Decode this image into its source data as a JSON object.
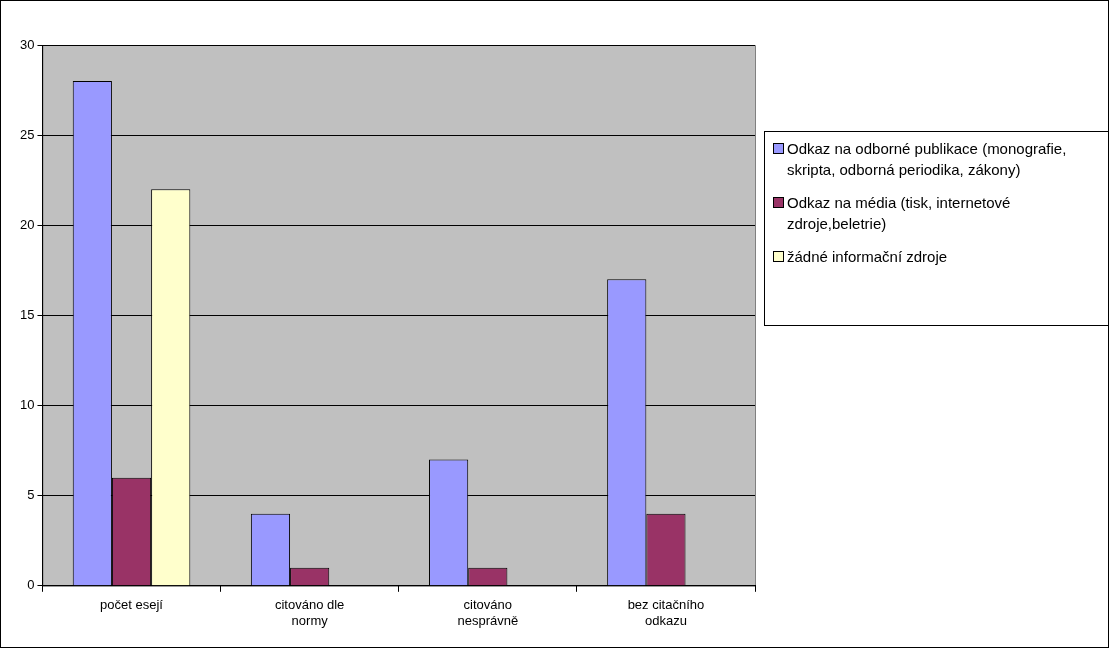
{
  "chart_data": {
    "type": "bar",
    "categories": [
      "počet esejí",
      "citováno dle normy",
      "citováno nesprávně",
      "bez citačního odkazu"
    ],
    "series": [
      {
        "name": "Odkaz na odborné publikace (monografie, skripta, odborná periodika, zákony)",
        "color": "#9999ff",
        "values": [
          28,
          4,
          7,
          17
        ]
      },
      {
        "name": "Odkaz na média (tisk, internetové zdroje,beletrie)",
        "color": "#993366",
        "values": [
          6,
          1,
          1,
          4
        ]
      },
      {
        "name": "žádné informační zdroje",
        "color": "#ffffcc",
        "values": [
          22,
          null,
          null,
          null
        ]
      }
    ],
    "ylim": [
      0,
      30
    ],
    "yticks": [
      0,
      5,
      10,
      15,
      20,
      25,
      30
    ],
    "grid": "y",
    "legend": "right"
  }
}
